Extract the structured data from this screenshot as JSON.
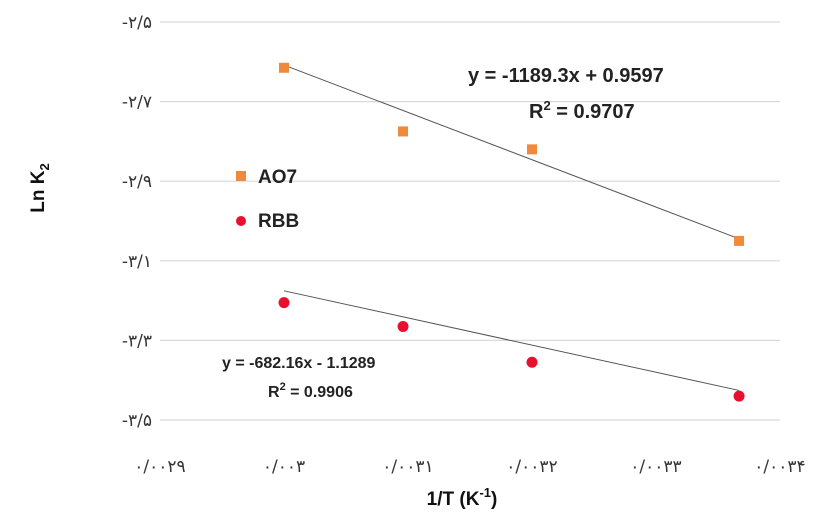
{
  "chart_data": {
    "type": "scatter",
    "xlabel": "1/T (K⁻¹)",
    "xlabel_main": "1/T (K",
    "xlabel_sup": "-1",
    "xlabel_close": ")",
    "ylabel_main": "Ln K",
    "ylabel_sub": "2",
    "xlim": [
      0.0029,
      0.0034
    ],
    "ylim": [
      -3.5,
      -2.5
    ],
    "x_ticks": [
      {
        "value": 0.0029,
        "label": "۰/۰۰۲۹"
      },
      {
        "value": 0.003,
        "label": "۰/۰۰۳"
      },
      {
        "value": 0.0031,
        "label": "۰/۰۰۳۱"
      },
      {
        "value": 0.0032,
        "label": "۰/۰۰۳۲"
      },
      {
        "value": 0.0033,
        "label": "۰/۰۰۳۳"
      },
      {
        "value": 0.0034,
        "label": "۰/۰۰۳۴"
      }
    ],
    "y_ticks": [
      {
        "value": -2.5,
        "label": "-۲/۵"
      },
      {
        "value": -2.7,
        "label": "-۲/۷"
      },
      {
        "value": -2.9,
        "label": "-۲/۹"
      },
      {
        "value": -3.1,
        "label": "-۳/۱"
      },
      {
        "value": -3.3,
        "label": "-۳/۳"
      },
      {
        "value": -3.5,
        "label": "-۳/۵"
      }
    ],
    "grid": "horizontal",
    "legend_position": "left",
    "series": [
      {
        "name": "AO7",
        "color": "#ED8A3E",
        "marker": "square",
        "x": [
          0.003,
          0.003096,
          0.0032,
          0.003367
        ],
        "y": [
          -2.615,
          -2.775,
          -2.82,
          -3.05
        ],
        "trendline": {
          "slope": -1189.3,
          "intercept": 0.9597
        },
        "equation": "y = -1189.3x + 0.9597",
        "r2_label": "R",
        "r2_sup": "2",
        "r2_value": " = 0.9707"
      },
      {
        "name": "RBB",
        "color": "#E8112D",
        "marker": "circle",
        "x": [
          0.003,
          0.003096,
          0.0032,
          0.003367
        ],
        "y": [
          -3.205,
          -3.265,
          -3.355,
          -3.44
        ],
        "trendline": {
          "slope": -682.16,
          "intercept": -1.1289
        },
        "equation": "y = -682.16x - 1.1289",
        "r2_label": "R",
        "r2_sup": "2",
        "r2_value": " = 0.9906"
      }
    ]
  }
}
